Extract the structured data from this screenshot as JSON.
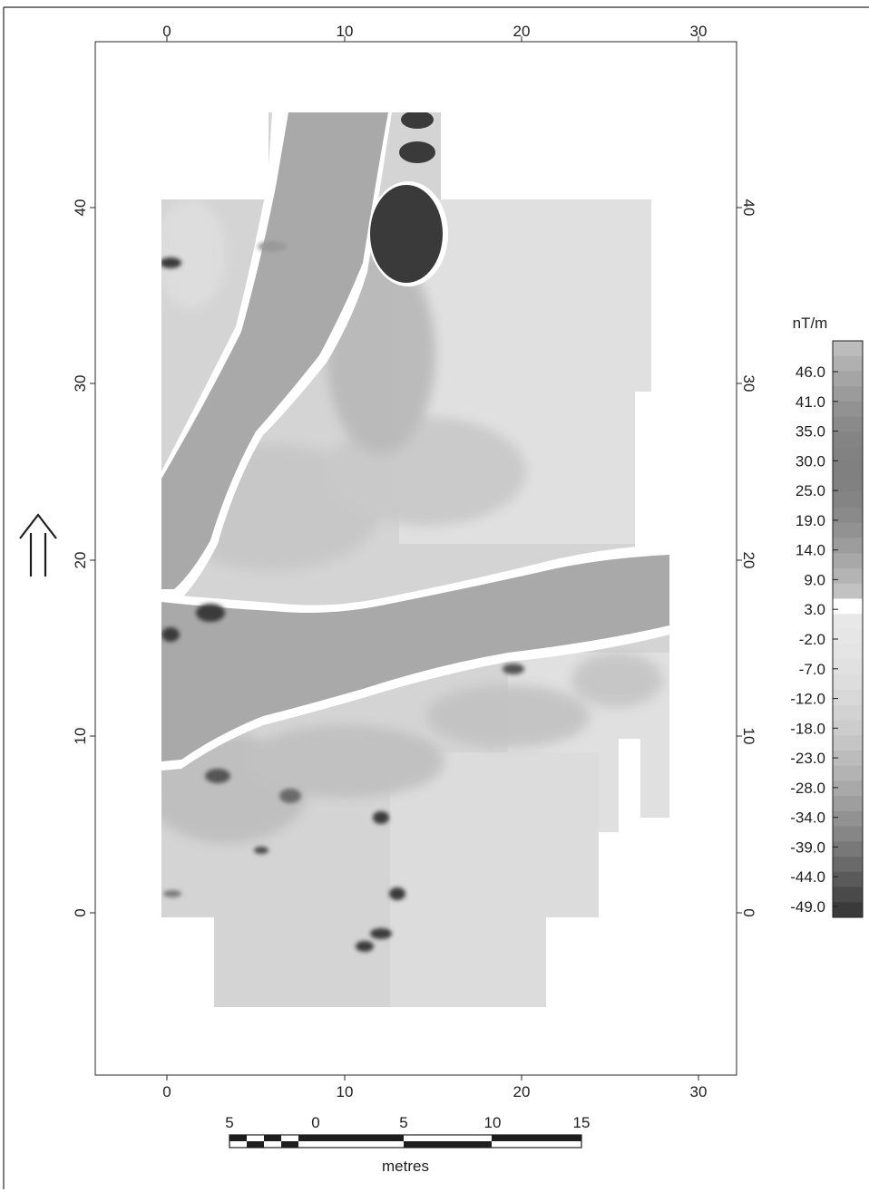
{
  "map": {
    "x_ticks": [
      "0",
      "10",
      "20",
      "30"
    ],
    "y_ticks": [
      "0",
      "10",
      "20",
      "30",
      "40"
    ],
    "north_arrow": "double-up-arrow"
  },
  "legend": {
    "unit": "nT/m",
    "labels": [
      "46.0",
      "41.0",
      "35.0",
      "30.0",
      "25.0",
      "19.0",
      "14.0",
      "9.0",
      "3.0",
      "-2.0",
      "-7.0",
      "-12.0",
      "-18.0",
      "-23.0",
      "-28.0",
      "-34.0",
      "-39.0",
      "-44.0",
      "-49.0"
    ],
    "colors": {
      "darkest": "#3a3a3a",
      "mid": "#a8a8a8",
      "light": "#e4e4e4",
      "zero": "#ffffff"
    }
  },
  "scale_bar": {
    "ticks": [
      "5",
      "0",
      "5",
      "10",
      "15"
    ],
    "unit": "metres"
  }
}
